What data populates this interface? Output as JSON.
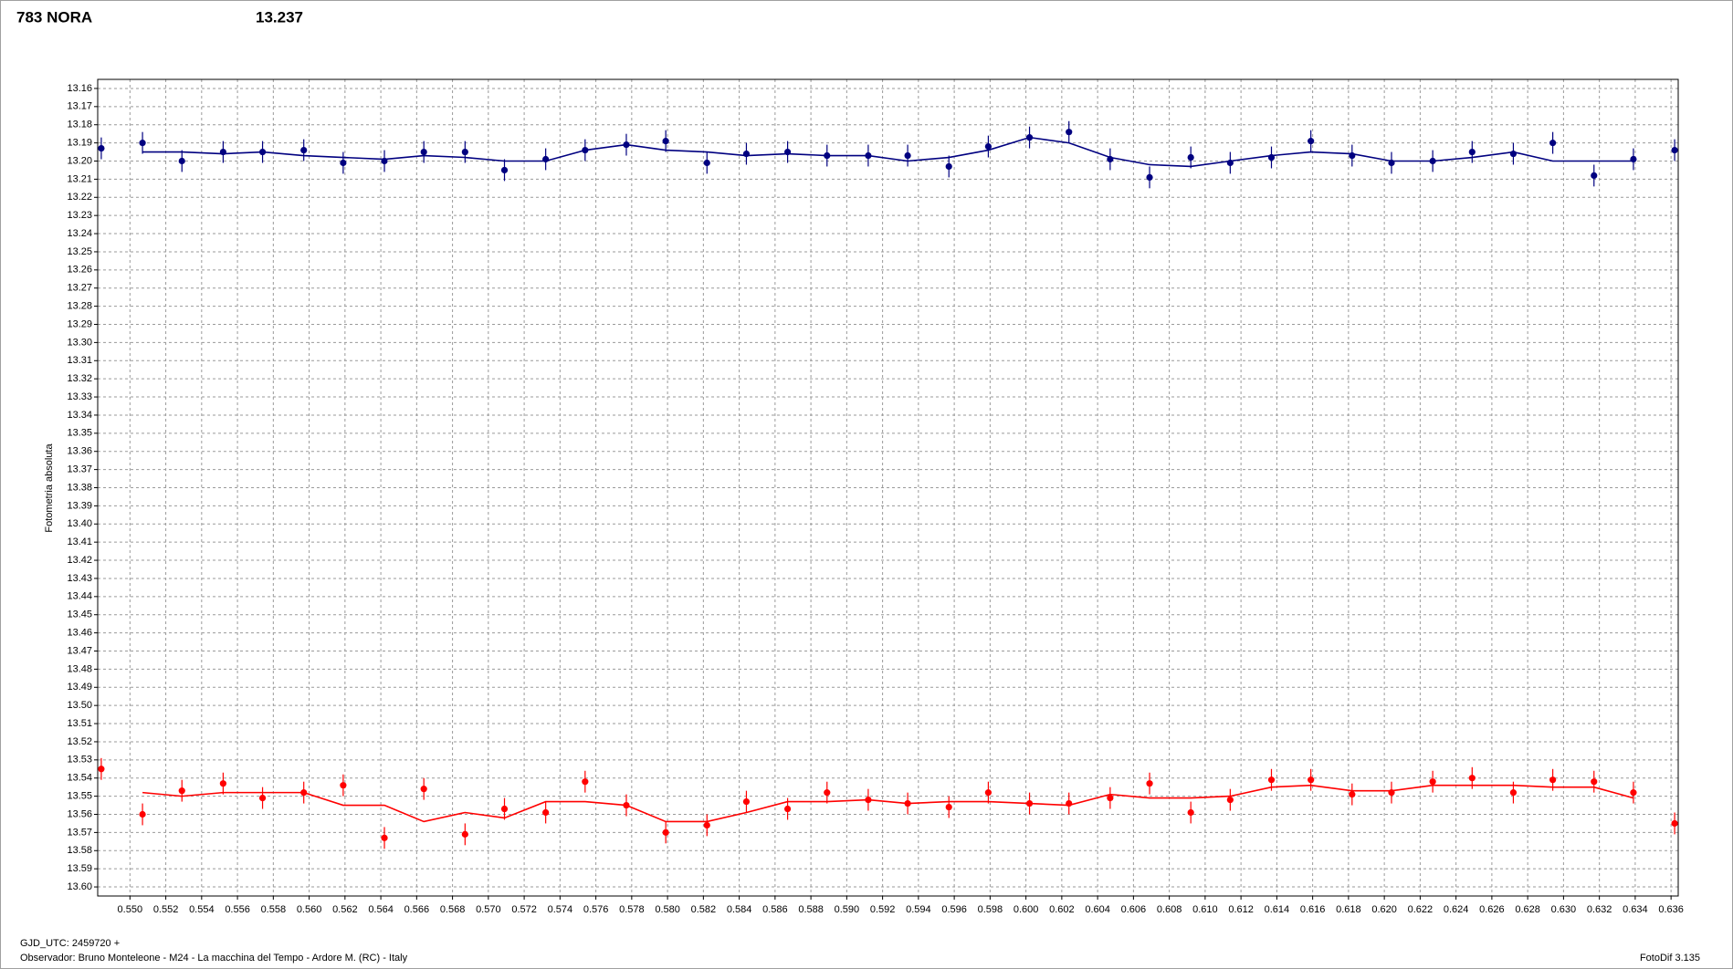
{
  "chart_data": {
    "type": "line",
    "title": "783 NORA",
    "subtitle": "13.237",
    "y_label": "Fotometria absoluta",
    "footer_left": "GJD_UTC: 2459720 +",
    "footer_observer": "Observador: Bruno Monteleone - M24 - La macchina del Tempo - Ardore M. (RC) - Italy",
    "footer_right": "FotoDif 3.135",
    "title_color": "#ff0000",
    "subtitle_color": "#000080",
    "grid": true,
    "y_inverted": true,
    "xlim": [
      0.5482,
      0.6364
    ],
    "ylim": [
      13.155,
      13.605
    ],
    "xticks": [
      {
        "value": 0.55,
        "label": "0.550"
      },
      0.552,
      0.554,
      0.556,
      0.558,
      {
        "value": 0.56,
        "label": "0.560"
      },
      0.562,
      0.564,
      0.566,
      0.568,
      {
        "value": 0.57,
        "label": "0.570"
      },
      0.572,
      0.574,
      0.576,
      0.578,
      {
        "value": 0.58,
        "label": "0.580"
      },
      0.582,
      0.584,
      0.586,
      0.588,
      {
        "value": 0.59,
        "label": "0.590"
      },
      0.592,
      0.594,
      0.596,
      0.598,
      {
        "value": 0.6,
        "label": "0.600"
      },
      0.602,
      0.604,
      0.606,
      0.608,
      {
        "value": 0.61,
        "label": "0.610"
      },
      0.612,
      0.614,
      0.616,
      0.618,
      {
        "value": 0.62,
        "label": "0.620"
      },
      0.622,
      0.624,
      0.626,
      0.628,
      {
        "value": 0.63,
        "label": "0.630"
      },
      0.632,
      0.634,
      0.636
    ],
    "yticks": [
      13.16,
      13.17,
      13.18,
      13.19,
      {
        "value": 13.2,
        "label": "13.20"
      },
      13.21,
      13.22,
      13.23,
      13.24,
      13.25,
      13.26,
      13.27,
      13.28,
      13.29,
      {
        "value": 13.3,
        "label": "13.30"
      },
      13.31,
      13.32,
      13.33,
      13.34,
      13.35,
      13.36,
      13.37,
      13.38,
      13.39,
      {
        "value": 13.4,
        "label": "13.40"
      },
      13.41,
      13.42,
      13.43,
      13.44,
      13.45,
      13.46,
      13.47,
      13.48,
      13.49,
      {
        "value": 13.5,
        "label": "13.50"
      },
      13.51,
      13.52,
      13.53,
      13.54,
      13.55,
      13.56,
      13.57,
      13.58,
      13.59,
      {
        "value": 13.6,
        "label": "13.60"
      }
    ],
    "x": [
      0.5484,
      0.5507,
      0.5529,
      0.5552,
      0.5574,
      0.5597,
      0.5619,
      0.5642,
      0.5664,
      0.5687,
      0.5709,
      0.5732,
      0.5754,
      0.5777,
      0.5799,
      0.5822,
      0.5844,
      0.5867,
      0.5889,
      0.5912,
      0.5934,
      0.5957,
      0.5979,
      0.6002,
      0.6024,
      0.6047,
      0.6069,
      0.6092,
      0.6114,
      0.6137,
      0.6159,
      0.6182,
      0.6204,
      0.6227,
      0.6249,
      0.6272,
      0.6294,
      0.6317,
      0.6339,
      0.6362
    ],
    "series": [
      {
        "color": "#000080",
        "error": 0.006,
        "values": [
          13.193,
          13.19,
          13.2,
          13.195,
          13.195,
          13.194,
          13.201,
          13.2,
          13.195,
          13.195,
          13.205,
          13.199,
          13.194,
          13.191,
          13.189,
          13.201,
          13.196,
          13.195,
          13.197,
          13.197,
          13.197,
          13.203,
          13.192,
          13.187,
          13.184,
          13.199,
          13.209,
          13.198,
          13.201,
          13.198,
          13.189,
          13.197,
          13.201,
          13.2,
          13.195,
          13.196,
          13.19,
          13.208,
          13.199,
          13.194
        ],
        "trend": [
          null,
          13.195,
          13.195,
          13.196,
          13.195,
          13.197,
          13.198,
          13.199,
          13.197,
          13.198,
          13.2,
          13.2,
          13.194,
          13.191,
          13.194,
          13.195,
          13.197,
          13.196,
          13.197,
          13.197,
          13.2,
          13.198,
          13.194,
          13.187,
          13.19,
          13.198,
          13.202,
          13.203,
          13.2,
          13.197,
          13.195,
          13.196,
          13.2,
          13.2,
          13.198,
          13.195,
          13.2,
          13.2,
          13.2,
          null
        ]
      },
      {
        "color": "#ff0000",
        "error": 0.006,
        "values": [
          13.535,
          13.56,
          13.547,
          13.543,
          13.551,
          13.548,
          13.544,
          13.573,
          13.546,
          13.571,
          13.557,
          13.559,
          13.542,
          13.555,
          13.57,
          13.566,
          13.553,
          13.557,
          13.548,
          13.552,
          13.554,
          13.556,
          13.548,
          13.554,
          13.554,
          13.551,
          13.543,
          13.559,
          13.552,
          13.541,
          13.541,
          13.549,
          13.548,
          13.542,
          13.54,
          13.548,
          13.541,
          13.542,
          13.548,
          13.565
        ],
        "trend": [
          null,
          13.548,
          13.55,
          13.548,
          13.548,
          13.548,
          13.555,
          13.555,
          13.564,
          13.559,
          13.562,
          13.553,
          13.553,
          13.555,
          13.564,
          13.564,
          13.559,
          13.553,
          13.553,
          13.552,
          13.554,
          13.553,
          13.553,
          13.554,
          13.555,
          13.549,
          13.551,
          13.551,
          13.55,
          13.545,
          13.544,
          13.547,
          13.547,
          13.544,
          13.544,
          13.544,
          13.545,
          13.545,
          13.551,
          null
        ]
      }
    ]
  }
}
